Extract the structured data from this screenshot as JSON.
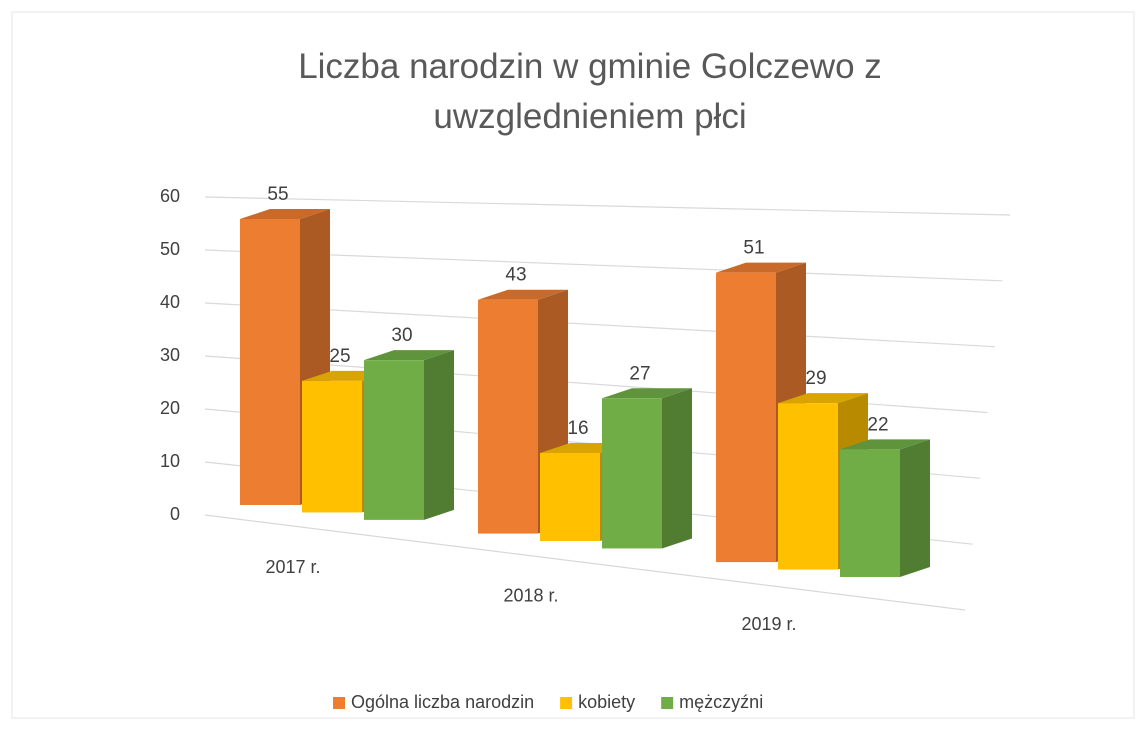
{
  "chart_data": {
    "type": "bar3d",
    "title": "Liczba narodzin w gminie Golczewo z uwzglednieniem płci",
    "categories": [
      "2017 r.",
      "2018 r.",
      "2019 r."
    ],
    "series": [
      {
        "name": "Ogólna liczba narodzin",
        "color": "#ed7d31",
        "values": [
          55,
          43,
          51
        ]
      },
      {
        "name": "kobiety",
        "color": "#ffc000",
        "values": [
          25,
          16,
          29
        ]
      },
      {
        "name": "mężczyźni",
        "color": "#70ad47",
        "values": [
          30,
          27,
          22
        ]
      }
    ],
    "ylim": [
      0,
      60
    ],
    "yticks": [
      0,
      10,
      20,
      30,
      40,
      50,
      60
    ],
    "grid": true,
    "legend": "bottom"
  }
}
